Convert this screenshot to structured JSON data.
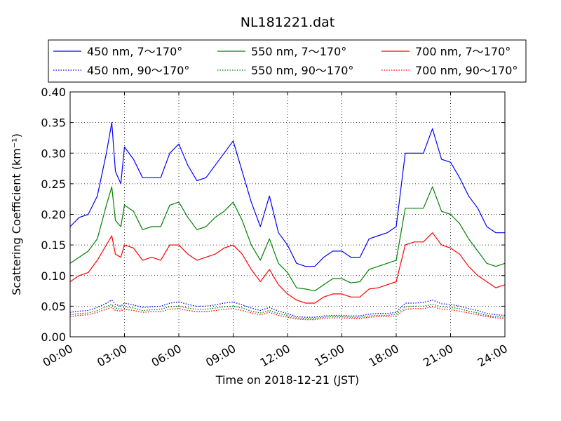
{
  "chart_data": {
    "type": "line",
    "title": "NL181221.dat",
    "xlabel": "Time on 2018-12-21 (JST)",
    "ylabel": "Scattering Coefficient (km⁻¹)",
    "xlim": [
      "2018-12-21 00:00",
      "2018-12-22 00:00"
    ],
    "ylim": [
      0,
      0.4
    ],
    "x_ticks": [
      "00:00",
      "03:00",
      "06:00",
      "09:00",
      "12:00",
      "15:00",
      "18:00",
      "21:00",
      "24:00"
    ],
    "y_ticks": [
      "0.00",
      "0.05",
      "0.10",
      "0.15",
      "0.20",
      "0.25",
      "0.30",
      "0.35",
      "0.40"
    ],
    "grid": true,
    "legend_position": "top, above plot, 3 columns",
    "x_hours": [
      0,
      0.5,
      1,
      1.5,
      2,
      2.3,
      2.5,
      2.8,
      3,
      3.5,
      4,
      4.5,
      5,
      5.5,
      6,
      6.5,
      7,
      7.5,
      8,
      8.5,
      9,
      9.5,
      10,
      10.5,
      11,
      11.5,
      12,
      12.5,
      13,
      13.5,
      14,
      14.5,
      15,
      15.5,
      16,
      16.5,
      17,
      17.5,
      18,
      18.5,
      19,
      19.5,
      20,
      20.5,
      21,
      21.5,
      22,
      22.5,
      23,
      23.5,
      24
    ],
    "series": [
      {
        "name": "450 nm, 7～170°",
        "color": "#0000ff",
        "style": "solid",
        "values": [
          0.18,
          0.195,
          0.2,
          0.23,
          0.3,
          0.35,
          0.27,
          0.25,
          0.31,
          0.29,
          0.26,
          0.26,
          0.26,
          0.3,
          0.315,
          0.28,
          0.255,
          0.26,
          0.28,
          0.3,
          0.32,
          0.27,
          0.22,
          0.18,
          0.23,
          0.17,
          0.15,
          0.12,
          0.115,
          0.115,
          0.13,
          0.14,
          0.14,
          0.13,
          0.13,
          0.16,
          0.165,
          0.17,
          0.18,
          0.3,
          0.3,
          0.3,
          0.34,
          0.29,
          0.285,
          0.26,
          0.23,
          0.21,
          0.18,
          0.17,
          0.17
        ]
      },
      {
        "name": "550 nm, 7～170°",
        "color": "#008000",
        "style": "solid",
        "values": [
          0.12,
          0.13,
          0.14,
          0.16,
          0.215,
          0.245,
          0.19,
          0.18,
          0.215,
          0.205,
          0.175,
          0.18,
          0.18,
          0.215,
          0.22,
          0.195,
          0.175,
          0.18,
          0.195,
          0.205,
          0.22,
          0.19,
          0.15,
          0.125,
          0.16,
          0.12,
          0.105,
          0.08,
          0.078,
          0.075,
          0.085,
          0.095,
          0.095,
          0.088,
          0.09,
          0.11,
          0.115,
          0.12,
          0.125,
          0.21,
          0.21,
          0.21,
          0.245,
          0.205,
          0.2,
          0.185,
          0.16,
          0.14,
          0.12,
          0.115,
          0.12
        ]
      },
      {
        "name": "700 nm, 7～170°",
        "color": "#ff0000",
        "style": "solid",
        "values": [
          0.09,
          0.1,
          0.105,
          0.125,
          0.15,
          0.165,
          0.135,
          0.13,
          0.15,
          0.145,
          0.125,
          0.13,
          0.125,
          0.15,
          0.15,
          0.135,
          0.125,
          0.13,
          0.135,
          0.145,
          0.15,
          0.135,
          0.11,
          0.09,
          0.11,
          0.085,
          0.07,
          0.06,
          0.055,
          0.055,
          0.065,
          0.07,
          0.07,
          0.065,
          0.065,
          0.078,
          0.08,
          0.085,
          0.09,
          0.15,
          0.155,
          0.155,
          0.17,
          0.15,
          0.145,
          0.135,
          0.115,
          0.1,
          0.09,
          0.08,
          0.085
        ]
      },
      {
        "name": "450 nm, 90～170°",
        "color": "#0000ff",
        "style": "dotted",
        "values": [
          0.04,
          0.042,
          0.043,
          0.048,
          0.055,
          0.06,
          0.053,
          0.05,
          0.055,
          0.052,
          0.048,
          0.049,
          0.05,
          0.055,
          0.057,
          0.053,
          0.05,
          0.05,
          0.052,
          0.055,
          0.057,
          0.052,
          0.047,
          0.043,
          0.048,
          0.042,
          0.038,
          0.033,
          0.032,
          0.032,
          0.034,
          0.035,
          0.035,
          0.034,
          0.034,
          0.037,
          0.038,
          0.038,
          0.04,
          0.055,
          0.055,
          0.056,
          0.06,
          0.054,
          0.053,
          0.05,
          0.046,
          0.043,
          0.038,
          0.036,
          0.035
        ]
      },
      {
        "name": "550 nm, 90～170°",
        "color": "#008000",
        "style": "dotted",
        "values": [
          0.036,
          0.038,
          0.039,
          0.043,
          0.049,
          0.053,
          0.047,
          0.045,
          0.049,
          0.047,
          0.043,
          0.044,
          0.045,
          0.049,
          0.05,
          0.047,
          0.045,
          0.045,
          0.047,
          0.049,
          0.05,
          0.047,
          0.042,
          0.039,
          0.043,
          0.038,
          0.035,
          0.031,
          0.03,
          0.03,
          0.032,
          0.033,
          0.033,
          0.032,
          0.032,
          0.034,
          0.035,
          0.035,
          0.037,
          0.049,
          0.05,
          0.05,
          0.053,
          0.049,
          0.048,
          0.046,
          0.042,
          0.039,
          0.035,
          0.033,
          0.032
        ]
      },
      {
        "name": "700 nm, 90～170°",
        "color": "#ff0000",
        "style": "dotted",
        "values": [
          0.033,
          0.035,
          0.036,
          0.04,
          0.045,
          0.048,
          0.043,
          0.042,
          0.045,
          0.043,
          0.04,
          0.041,
          0.041,
          0.045,
          0.046,
          0.043,
          0.041,
          0.041,
          0.043,
          0.045,
          0.046,
          0.043,
          0.039,
          0.036,
          0.04,
          0.035,
          0.032,
          0.029,
          0.028,
          0.028,
          0.03,
          0.031,
          0.031,
          0.03,
          0.03,
          0.032,
          0.033,
          0.033,
          0.034,
          0.045,
          0.046,
          0.046,
          0.049,
          0.045,
          0.044,
          0.042,
          0.039,
          0.036,
          0.033,
          0.031,
          0.03
        ]
      }
    ]
  }
}
